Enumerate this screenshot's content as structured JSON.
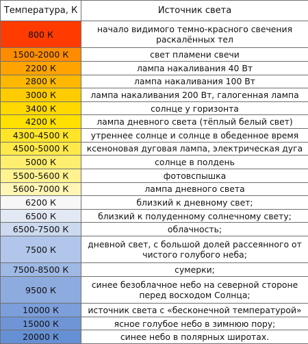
{
  "table": {
    "headers": [
      "Температура, К",
      "Источник света"
    ],
    "rows": [
      {
        "temp": "800 К",
        "desc": "начало видимого темно-красного свечения раскалённых тел",
        "color": "#ff3b00",
        "lines": 2
      },
      {
        "temp": "1500-2000 К",
        "desc": "свет пламени свечи",
        "color": "#ff8c00",
        "lines": 1
      },
      {
        "temp": "2200 К",
        "desc": "лампа накаливания 40 Вт",
        "color": "#ffa300",
        "lines": 1
      },
      {
        "temp": "2800 К",
        "desc": "лампа накаливания 100 Вт",
        "color": "#ffb800",
        "lines": 1
      },
      {
        "temp": "3000 К",
        "desc": "лампа накаливания 200 Вт, галогенная лампа",
        "color": "#ffcc00",
        "lines": 1
      },
      {
        "temp": "3400 К",
        "desc": "солнце у горизонта",
        "color": "#ffd800",
        "lines": 1
      },
      {
        "temp": "4200 К",
        "desc": "лампа дневного света (тёплый белый свет)",
        "color": "#ffe000",
        "lines": 1
      },
      {
        "temp": "4300-4500 К",
        "desc": "утреннее солнце и солнце в обеденное время",
        "color": "#ffe52a",
        "lines": 1
      },
      {
        "temp": "4500-5000 К",
        "desc": "ксеноновая дуговая лампа, электрическая дуга",
        "color": "#ffe94a",
        "lines": 1
      },
      {
        "temp": "5000 К",
        "desc": "солнце в полдень",
        "color": "#ffee70",
        "lines": 1
      },
      {
        "temp": "5500-5600 К",
        "desc": "фотовспышка",
        "color": "#fff290",
        "lines": 1
      },
      {
        "temp": "5600-7000 К",
        "desc": "лампа дневного света",
        "color": "#fff6b5",
        "lines": 1
      },
      {
        "temp": "6200 К",
        "desc": "близкий к дневному свет;",
        "color": "#f7f7f7",
        "lines": 1
      },
      {
        "temp": "6500 К",
        "desc": "близкий к полуденному солнечному свету;",
        "color": "#e3e9f4",
        "lines": 1
      },
      {
        "temp": "6500-7500 К",
        "desc": "облачность;",
        "color": "#ccd9ef",
        "lines": 1
      },
      {
        "temp": "7500 К",
        "desc": "дневной свет, с большой долей рассеянного от чистого голубого неба;",
        "color": "#b1c6ea",
        "lines": 2
      },
      {
        "temp": "7500-8500 К",
        "desc": "сумерки;",
        "color": "#9fb9e5",
        "lines": 1
      },
      {
        "temp": "9500 К",
        "desc": "синее безоблачное небо на северной стороне перед восходом Солнца;",
        "color": "#8eabe0",
        "lines": 2
      },
      {
        "temp": "10000 К",
        "desc": "источник света с «бесконечной температурой»",
        "color": "#7c9fdb",
        "lines": 1
      },
      {
        "temp": "15000 К",
        "desc": "ясное голубое небо в зимнюю пору;",
        "color": "#6f95d6",
        "lines": 1
      },
      {
        "temp": "20000 К",
        "desc": "синее небо в полярных широтах.",
        "color": "#6690d4",
        "lines": 1
      }
    ]
  }
}
